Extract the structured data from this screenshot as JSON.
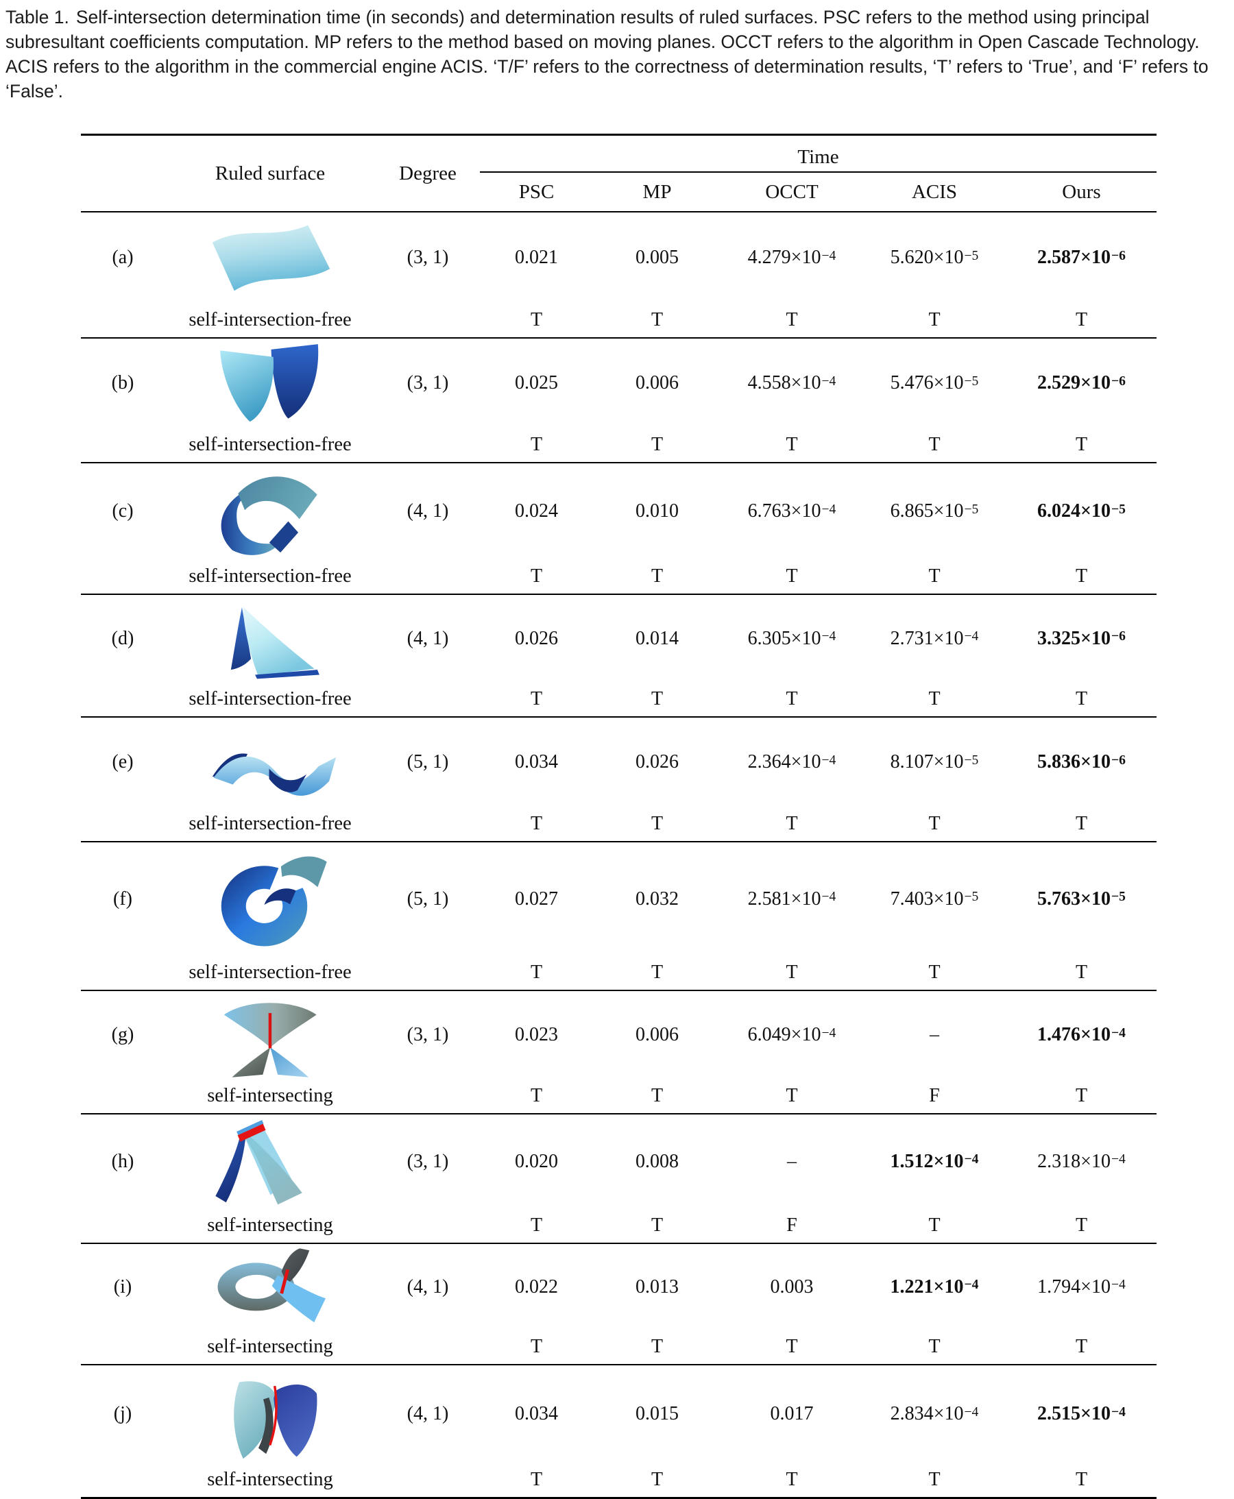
{
  "caption": {
    "label": "Table 1.",
    "text": "Self-intersection determination time (in seconds) and determination results of ruled surfaces. PSC refers to the method using principal subresultant coefficients computation. MP refers to the method based on moving planes. OCCT refers to the algorithm in Open Cascade Technology. ACIS refers to the algorithm in the commercial engine ACIS. ‘T/F’ refers to the correctness of determination results, ‘T’ refers to ‘True’, and ‘F’ refers to ‘False’."
  },
  "table": {
    "headers": {
      "ruled_surface": "Ruled surface",
      "degree": "Degree",
      "time_group": "Time",
      "methods": [
        "PSC",
        "MP",
        "OCCT",
        "ACIS",
        "Ours"
      ]
    },
    "rows": [
      {
        "id": "(a)",
        "surface_desc": "light blue wavy sheet",
        "surface_caption": "self-intersection-free",
        "degree": "(3, 1)",
        "times": [
          {
            "base": "0.021"
          },
          {
            "base": "0.005"
          },
          {
            "base": "4.279×10",
            "exp": "−4"
          },
          {
            "base": "5.620×10",
            "exp": "−5"
          },
          {
            "base": "2.587×10",
            "exp": "−6",
            "bold": true
          }
        ],
        "tf": [
          "T",
          "T",
          "T",
          "T",
          "T"
        ]
      },
      {
        "id": "(b)",
        "surface_desc": "two curved petals, cyan and dark blue",
        "surface_caption": "self-intersection-free",
        "degree": "(3, 1)",
        "times": [
          {
            "base": "0.025"
          },
          {
            "base": "0.006"
          },
          {
            "base": "4.558×10",
            "exp": "−4"
          },
          {
            "base": "5.476×10",
            "exp": "−5"
          },
          {
            "base": "2.529×10",
            "exp": "−6",
            "bold": true
          }
        ],
        "tf": [
          "T",
          "T",
          "T",
          "T",
          "T"
        ]
      },
      {
        "id": "(c)",
        "surface_desc": "curled teal-blue ribbon",
        "surface_caption": "self-intersection-free",
        "degree": "(4, 1)",
        "times": [
          {
            "base": "0.024"
          },
          {
            "base": "0.010"
          },
          {
            "base": "6.763×10",
            "exp": "−4"
          },
          {
            "base": "6.865×10",
            "exp": "−5"
          },
          {
            "base": "6.024×10",
            "exp": "−5",
            "bold": true
          }
        ],
        "tf": [
          "T",
          "T",
          "T",
          "T",
          "T"
        ]
      },
      {
        "id": "(d)",
        "surface_desc": "tent-like cyan sheet with dark blue edges",
        "surface_caption": "self-intersection-free",
        "degree": "(4, 1)",
        "times": [
          {
            "base": "0.026"
          },
          {
            "base": "0.014"
          },
          {
            "base": "6.305×10",
            "exp": "−4"
          },
          {
            "base": "2.731×10",
            "exp": "−4"
          },
          {
            "base": "3.325×10",
            "exp": "−6",
            "bold": true
          }
        ],
        "tf": [
          "T",
          "T",
          "T",
          "T",
          "T"
        ]
      },
      {
        "id": "(e)",
        "surface_desc": "double wave blue band",
        "surface_caption": "self-intersection-free",
        "degree": "(5, 1)",
        "times": [
          {
            "base": "0.034"
          },
          {
            "base": "0.026"
          },
          {
            "base": "2.364×10",
            "exp": "−4"
          },
          {
            "base": "8.107×10",
            "exp": "−5"
          },
          {
            "base": "5.836×10",
            "exp": "−6",
            "bold": true
          }
        ],
        "tf": [
          "T",
          "T",
          "T",
          "T",
          "T"
        ]
      },
      {
        "id": "(f)",
        "surface_desc": "six-shaped spiral blue ribbon",
        "surface_caption": "self-intersection-free",
        "degree": "(5, 1)",
        "times": [
          {
            "base": "0.027"
          },
          {
            "base": "0.032"
          },
          {
            "base": "2.581×10",
            "exp": "−4"
          },
          {
            "base": "7.403×10",
            "exp": "−5"
          },
          {
            "base": "5.763×10",
            "exp": "−5",
            "bold": true
          }
        ],
        "tf": [
          "T",
          "T",
          "T",
          "T",
          "T"
        ]
      },
      {
        "id": "(g)",
        "surface_desc": "bowtie saddle with red intersection line",
        "surface_caption": "self-intersecting",
        "degree": "(3, 1)",
        "times": [
          {
            "base": "0.023"
          },
          {
            "base": "0.006"
          },
          {
            "base": "6.049×10",
            "exp": "−4"
          },
          {
            "base": "–"
          },
          {
            "base": "1.476×10",
            "exp": "−4",
            "bold": true
          }
        ],
        "tf": [
          "T",
          "T",
          "T",
          "F",
          "T"
        ]
      },
      {
        "id": "(h)",
        "surface_desc": "folded tent with red ridge line",
        "surface_caption": "self-intersecting",
        "degree": "(3, 1)",
        "times": [
          {
            "base": "0.020"
          },
          {
            "base": "0.008"
          },
          {
            "base": "–"
          },
          {
            "base": "1.512×10",
            "exp": "−4",
            "bold": true
          },
          {
            "base": "2.318×10",
            "exp": "−4"
          }
        ],
        "tf": [
          "T",
          "T",
          "F",
          "T",
          "T"
        ]
      },
      {
        "id": "(i)",
        "surface_desc": "looped ribbon with red intersection line",
        "surface_caption": "self-intersecting",
        "degree": "(4, 1)",
        "times": [
          {
            "base": "0.022"
          },
          {
            "base": "0.013"
          },
          {
            "base": "0.003"
          },
          {
            "base": "1.221×10",
            "exp": "−4",
            "bold": true
          },
          {
            "base": "1.794×10",
            "exp": "−4"
          }
        ],
        "tf": [
          "T",
          "T",
          "T",
          "T",
          "T"
        ]
      },
      {
        "id": "(j)",
        "surface_desc": "folded teal-navy sheet with red fold line",
        "surface_caption": "self-intersecting",
        "degree": "(4, 1)",
        "times": [
          {
            "base": "0.034"
          },
          {
            "base": "0.015"
          },
          {
            "base": "0.017"
          },
          {
            "base": "2.834×10",
            "exp": "−4"
          },
          {
            "base": "2.515×10",
            "exp": "−4",
            "bold": true
          }
        ],
        "tf": [
          "T",
          "T",
          "T",
          "T",
          "T"
        ]
      }
    ]
  },
  "colors": {
    "intersection_line_red": "#d81414",
    "surface_blue_light": "#9fd8e8",
    "surface_blue_dark": "#16327e",
    "surface_teal": "#5d98a8",
    "rule_black": "#000000",
    "text": "#111111"
  }
}
